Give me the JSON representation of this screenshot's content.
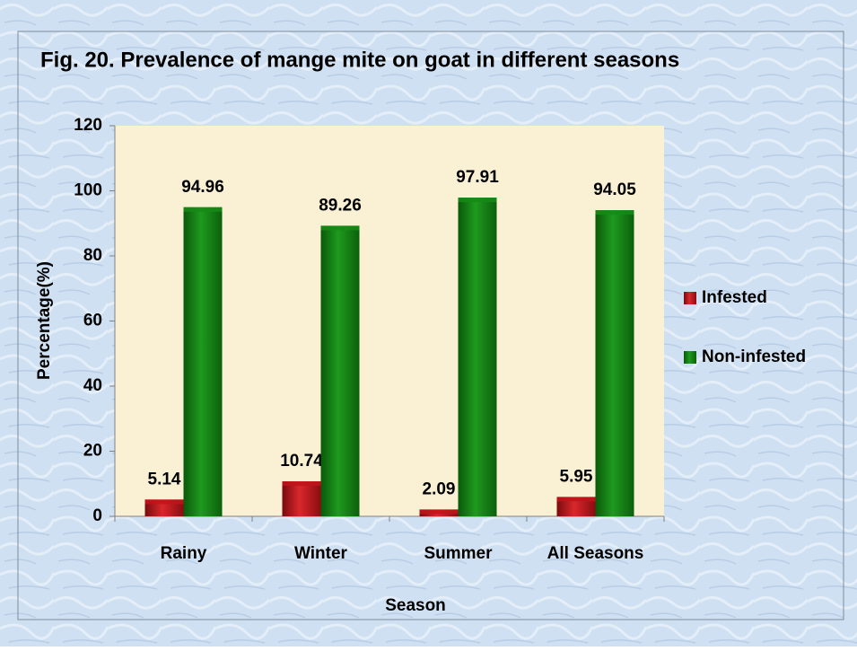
{
  "chart_data": {
    "type": "bar",
    "title": "Fig. 20. Prevalence of mange mite on goat in different seasons",
    "x_label": "Season",
    "y_label": "Percentage(%)",
    "categories": [
      "Rainy",
      "Winter",
      "Summer",
      "All Seasons"
    ],
    "series": [
      {
        "name": "Infested",
        "color": "#c0141a",
        "values": [
          5.14,
          10.74,
          2.09,
          5.95
        ]
      },
      {
        "name": "Non-infested",
        "color": "#168a16",
        "values": [
          94.96,
          89.26,
          97.91,
          94.05
        ]
      }
    ],
    "ylim": [
      0,
      120
    ],
    "yticks": [
      0,
      20,
      40,
      60,
      80,
      100,
      120
    ],
    "legend": "right"
  }
}
